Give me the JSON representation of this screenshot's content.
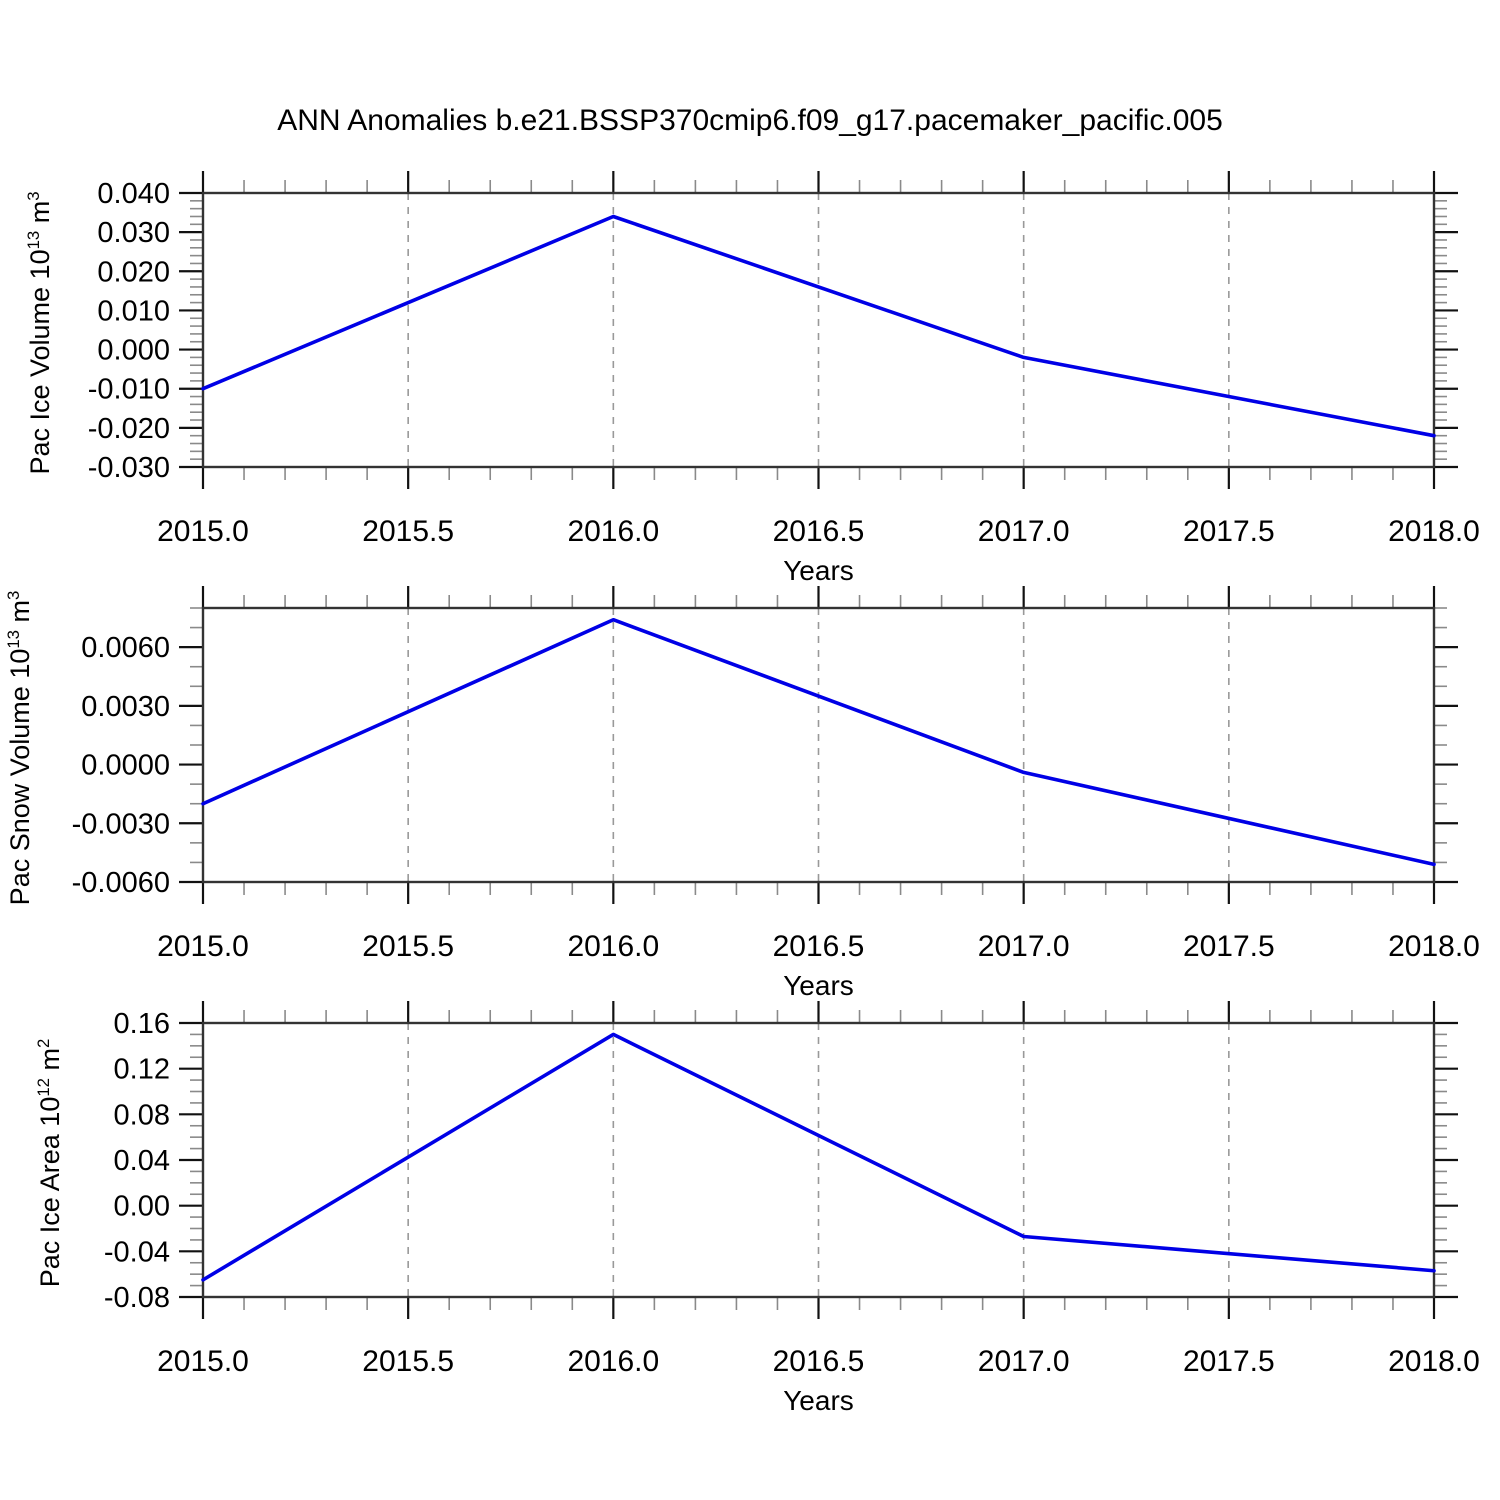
{
  "title": "ANN Anomalies b.e21.BSSP370cmip6.f09_g17.pacemaker_pacific.005",
  "chart_data": [
    {
      "type": "line",
      "title": "",
      "xlabel": "Years",
      "ylabel": "Pac Ice Volume 10¹³ m³",
      "ylabel_parts": {
        "base": "Pac Ice Volume 10",
        "exp": "13",
        "mid": " m",
        "exp2": "3"
      },
      "x": [
        2015.0,
        2016.0,
        2017.0,
        2018.0
      ],
      "values": [
        -0.01,
        0.034,
        -0.002,
        -0.022
      ],
      "xlim": [
        2015.0,
        2018.0
      ],
      "ylim": [
        -0.03,
        0.04
      ],
      "xtick_values": [
        2015.0,
        2015.5,
        2016.0,
        2016.5,
        2017.0,
        2017.5,
        2018.0
      ],
      "xtick_labels": [
        "2015.0",
        "2015.5",
        "2016.0",
        "2016.5",
        "2017.0",
        "2017.5",
        "2018.0"
      ],
      "xtick_minor": 0.1,
      "ytick_values": [
        0.04,
        0.03,
        0.02,
        0.01,
        0.0,
        -0.01,
        -0.02,
        -0.03
      ],
      "ytick_labels": [
        "0.040",
        "0.030",
        "0.020",
        "0.010",
        "0.000",
        "-0.010",
        "-0.020",
        "-0.030"
      ],
      "ytick_minor": 0.002,
      "grid": "vertical-dashed",
      "legend": "none",
      "line_color": "#0000e6"
    },
    {
      "type": "line",
      "title": "",
      "xlabel": "Years",
      "ylabel": "Pac Snow Volume 10¹³ m³",
      "ylabel_parts": {
        "base": "Pac Snow Volume 10",
        "exp": "13",
        "mid": " m",
        "exp2": "3"
      },
      "x": [
        2015.0,
        2016.0,
        2017.0,
        2018.0
      ],
      "values": [
        -0.002,
        0.0074,
        -0.0004,
        -0.0051
      ],
      "xlim": [
        2015.0,
        2018.0
      ],
      "ylim": [
        -0.006,
        0.008
      ],
      "xtick_values": [
        2015.0,
        2015.5,
        2016.0,
        2016.5,
        2017.0,
        2017.5,
        2018.0
      ],
      "xtick_labels": [
        "2015.0",
        "2015.5",
        "2016.0",
        "2016.5",
        "2017.0",
        "2017.5",
        "2018.0"
      ],
      "xtick_minor": 0.1,
      "ytick_values": [
        0.006,
        0.003,
        0.0,
        -0.003,
        -0.006
      ],
      "ytick_labels": [
        "0.0060",
        "0.0030",
        "0.0000",
        "-0.0030",
        "-0.0060"
      ],
      "ytick_minor": 0.001,
      "grid": "vertical-dashed",
      "legend": "none",
      "line_color": "#0000e6"
    },
    {
      "type": "line",
      "title": "",
      "xlabel": "Years",
      "ylabel": "Pac Ice Area 10¹² m²",
      "ylabel_parts": {
        "base": "Pac Ice Area 10",
        "exp": "12",
        "mid": " m",
        "exp2": "2"
      },
      "x": [
        2015.0,
        2016.0,
        2017.0,
        2018.0
      ],
      "values": [
        -0.065,
        0.15,
        -0.027,
        -0.057
      ],
      "xlim": [
        2015.0,
        2018.0
      ],
      "ylim": [
        -0.08,
        0.16
      ],
      "xtick_values": [
        2015.0,
        2015.5,
        2016.0,
        2016.5,
        2017.0,
        2017.5,
        2018.0
      ],
      "xtick_labels": [
        "2015.0",
        "2015.5",
        "2016.0",
        "2016.5",
        "2017.0",
        "2017.5",
        "2018.0"
      ],
      "xtick_minor": 0.1,
      "ytick_values": [
        0.16,
        0.12,
        0.08,
        0.04,
        0.0,
        -0.04,
        -0.08
      ],
      "ytick_labels": [
        "0.16",
        "0.12",
        "0.08",
        "0.04",
        "0.00",
        "-0.04",
        "-0.08"
      ],
      "ytick_minor": 0.01,
      "grid": "vertical-dashed",
      "legend": "none",
      "line_color": "#0000e6"
    }
  ]
}
